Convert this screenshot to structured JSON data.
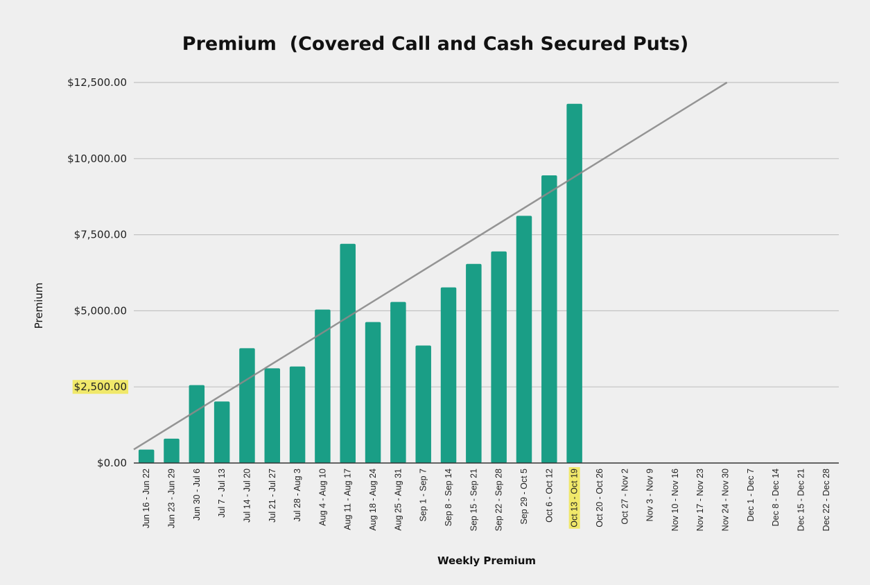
{
  "chart_data": {
    "type": "bar",
    "title": "Premium  (Covered Call and Cash Secured Puts)",
    "xlabel": "Weekly Premium",
    "ylabel": "Premium",
    "ylim": [
      0,
      12500
    ],
    "yticks": [
      0,
      2500,
      5000,
      7500,
      10000,
      12500
    ],
    "ytick_labels": [
      "$0.00",
      "$2,500.00",
      "$5,000.00",
      "$7,500.00",
      "$10,000.00",
      "$12,500.00"
    ],
    "highlighted_ytick": "$2,500.00",
    "highlighted_category": "Oct 13 - Oct 19",
    "highlight_color": "#f0e86a",
    "bar_color": "#1a9e86",
    "trendline_color": "#8a8a8a",
    "grid": true,
    "legend": "none",
    "categories": [
      "Jun 16 - Jun 22",
      "Jun 23 - Jun 29",
      "Jun 30 - Jul 6",
      "Jul 7 - Jul 13",
      "Jul 14 - Jul 20",
      "Jul 21 - Jul 27",
      "Jul 28 - Aug 3",
      "Aug 4 - Aug 10",
      "Aug 11 - Aug 17",
      "Aug 18 - Aug 24",
      "Aug 25 - Aug 31",
      "Sep 1 - Sep 7",
      "Sep 8 - Sep 14",
      "Sep 15 - Sep 21",
      "Sep 22 - Sep 28",
      "Sep 29 - Oct 5",
      "Oct 6 - Oct 12",
      "Oct 13 - Oct 19",
      "Oct 20 - Oct 26",
      "Oct 27 - Nov 2",
      "Nov 3 - Nov 9",
      "Nov 10 - Nov 16",
      "Nov 17 - Nov 23",
      "Nov 24 - Nov 30",
      "Dec 1 - Dec 7",
      "Dec 8 - Dec 14",
      "Dec 15 - Dec 21",
      "Dec 22 - Dec 28"
    ],
    "values": [
      440,
      800,
      2560,
      2020,
      3770,
      3110,
      3170,
      5040,
      7200,
      4630,
      5290,
      3860,
      5770,
      6540,
      6950,
      8120,
      9450,
      11800,
      0,
      0,
      0,
      0,
      0,
      0,
      0,
      0,
      0,
      0
    ],
    "trendline": {
      "type": "linear",
      "x_start": "Jun 16 - Jun 22",
      "y_start": 700,
      "x_end": "Oct 13 - Oct 19",
      "y_end": 9400
    }
  }
}
